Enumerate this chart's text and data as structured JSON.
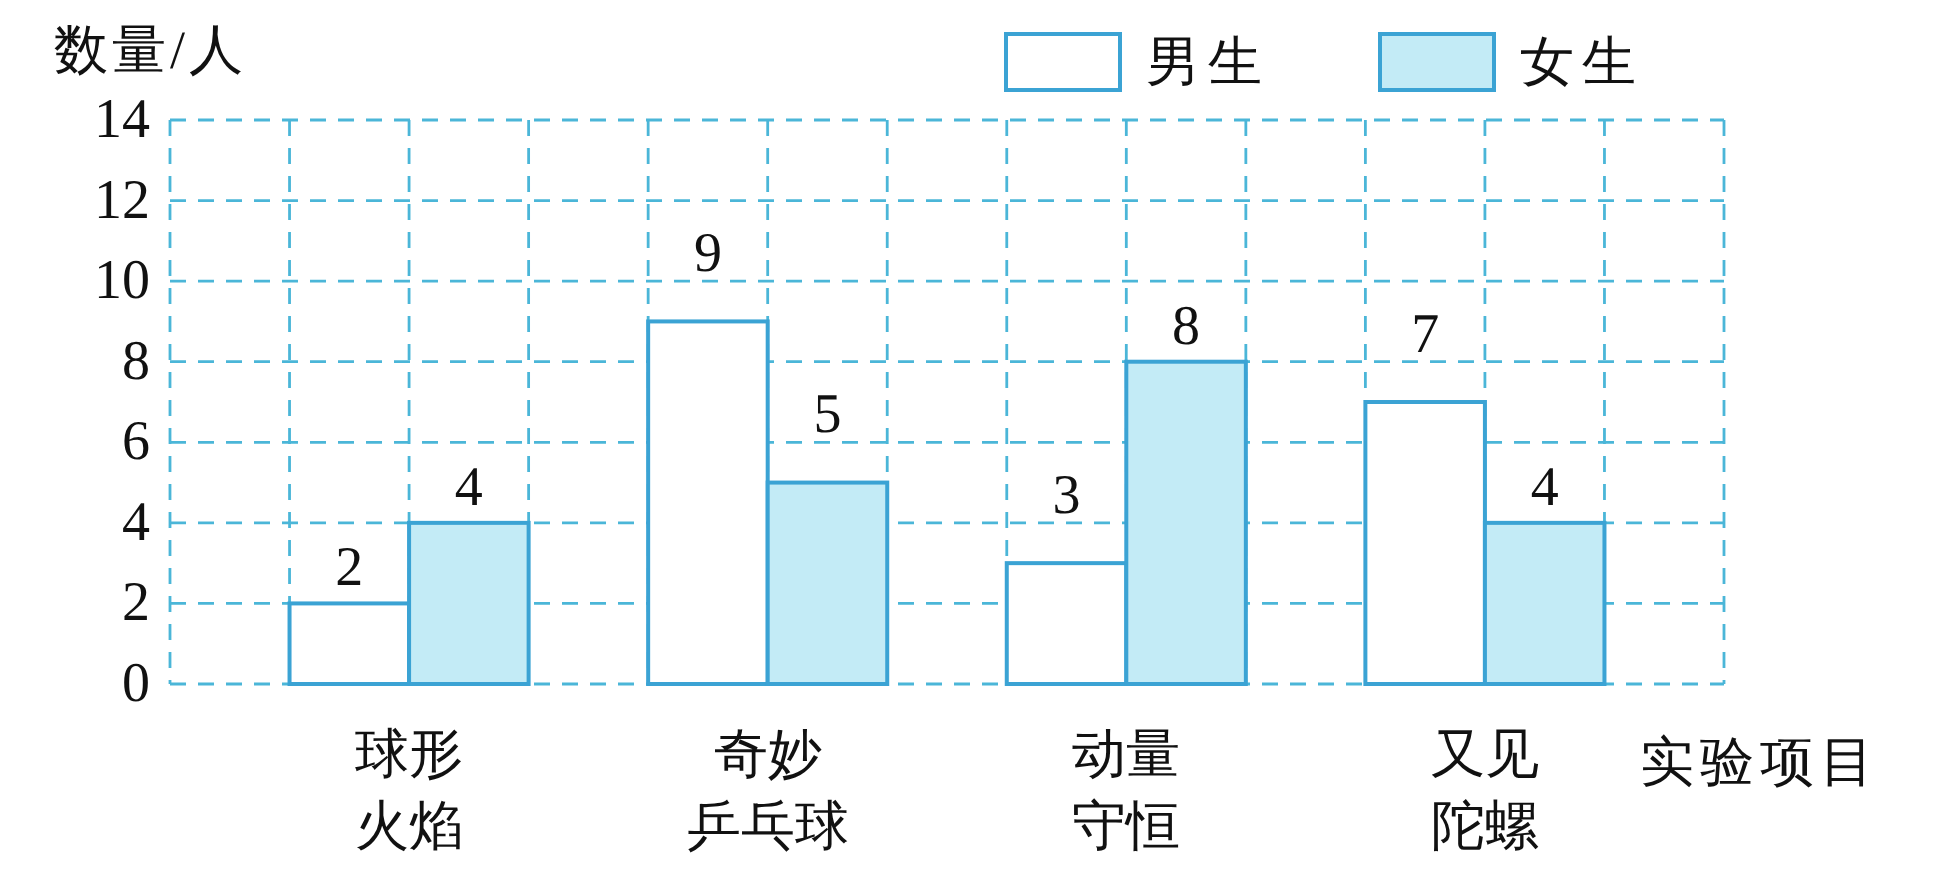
{
  "chart_data": {
    "type": "bar",
    "ylabel": "数量/人",
    "xlabel": "实验项目",
    "categories": [
      "球形火焰",
      "奇妙乒乓球",
      "动量守恒",
      "又见陀螺"
    ],
    "series": [
      {
        "name": "男生",
        "color": "#ffffff",
        "values": [
          2,
          9,
          3,
          7
        ]
      },
      {
        "name": "女生",
        "color": "#c3ebf6",
        "values": [
          4,
          5,
          8,
          4
        ]
      }
    ],
    "ylim": [
      0,
      14
    ],
    "yticks": [
      0,
      2,
      4,
      6,
      8,
      10,
      12,
      14
    ],
    "grid": true,
    "legend": "top right",
    "data_labels": true
  }
}
